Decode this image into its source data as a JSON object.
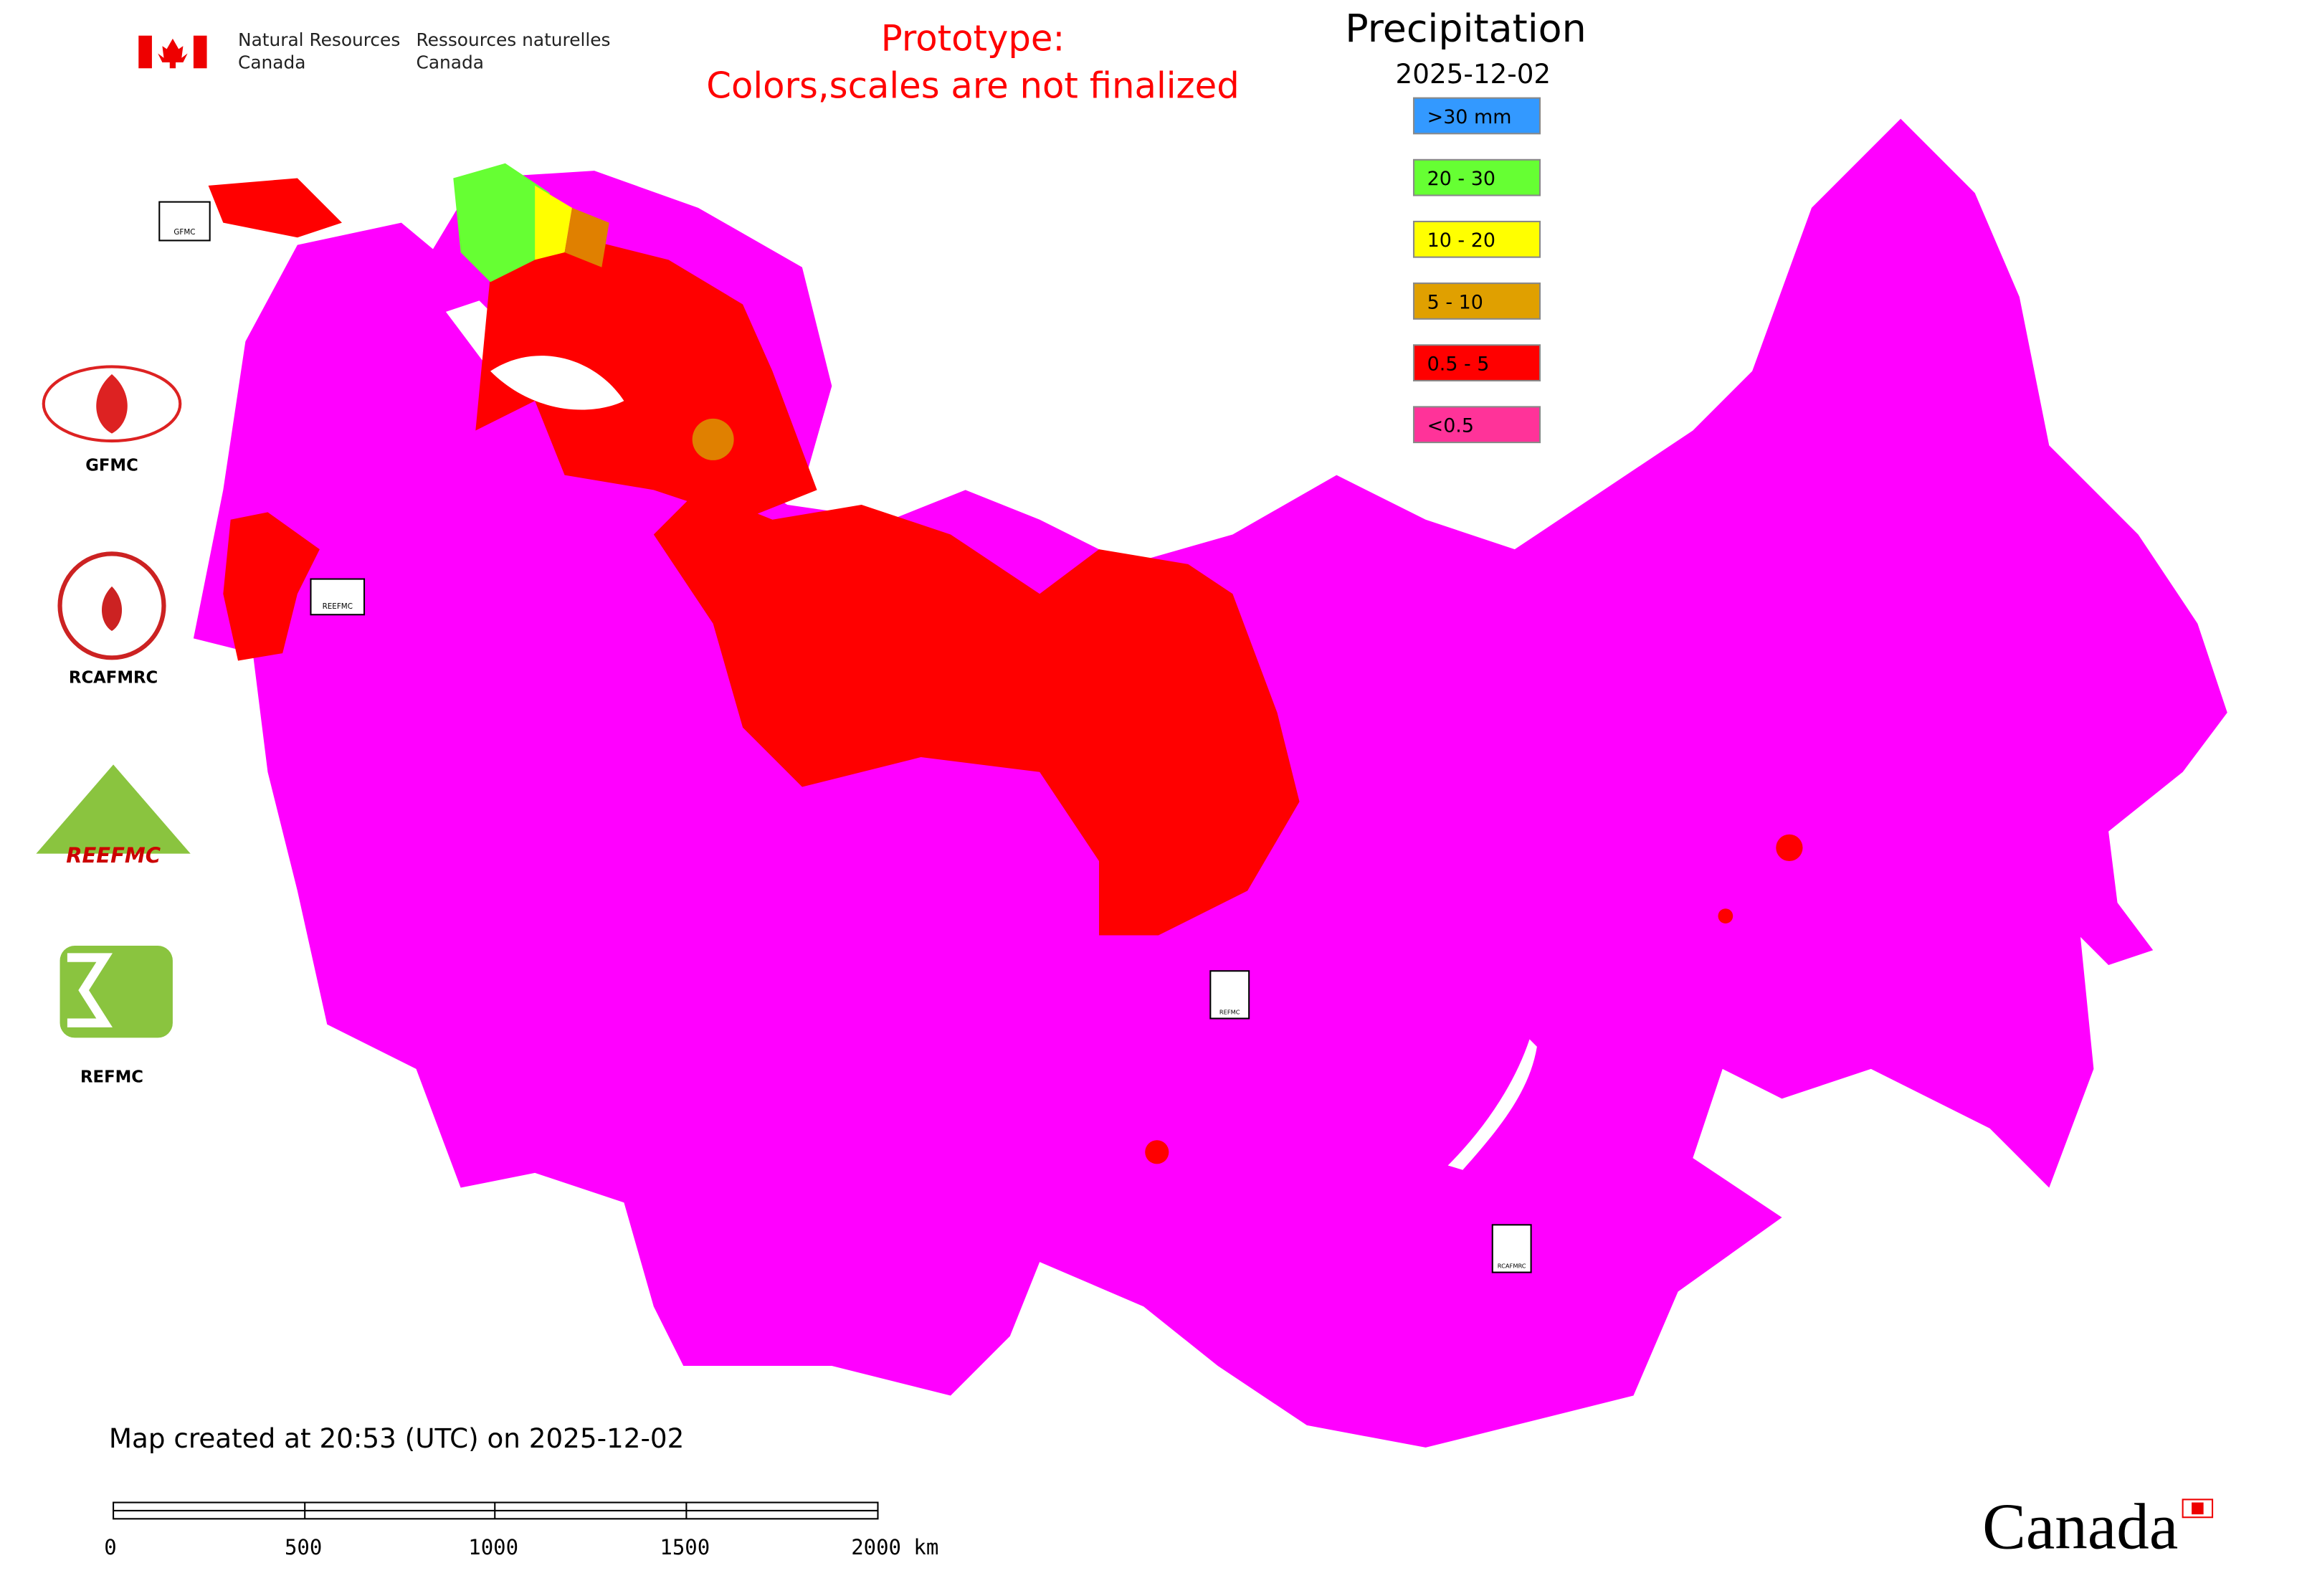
{
  "header": {
    "org_en": [
      "Natural Resources",
      "Canada"
    ],
    "org_fr": [
      "Ressources naturelles",
      "Canada"
    ]
  },
  "notice": [
    "Prototype:",
    "Colors,scales are not finalized"
  ],
  "title": "Precipitation",
  "date": "2025-12-02",
  "legend": {
    "items": [
      {
        "label": ">30 mm",
        "color": "#3399ff"
      },
      {
        "label": "20 - 30",
        "color": "#66ff33"
      },
      {
        "label": "10 - 20",
        "color": "#ffff00"
      },
      {
        "label": "5 - 10",
        "color": "#e0a000"
      },
      {
        "label": "0.5 - 5",
        "color": "#ff0000"
      },
      {
        "label": "<0.5",
        "color": "#ff3399"
      }
    ]
  },
  "logos": [
    "GFMC",
    "RCAFMRC",
    "REEFMC",
    "REFMC"
  ],
  "map_markers": [
    "GFMC",
    "REEFMC",
    "REFMC",
    "RCAFMRC"
  ],
  "footer": "Map created at 20:53 (UTC) on 2025-12-02",
  "scale_bar": [
    "0",
    "500",
    "1000",
    "1500",
    "2000 km"
  ],
  "wordmark": "Canada"
}
